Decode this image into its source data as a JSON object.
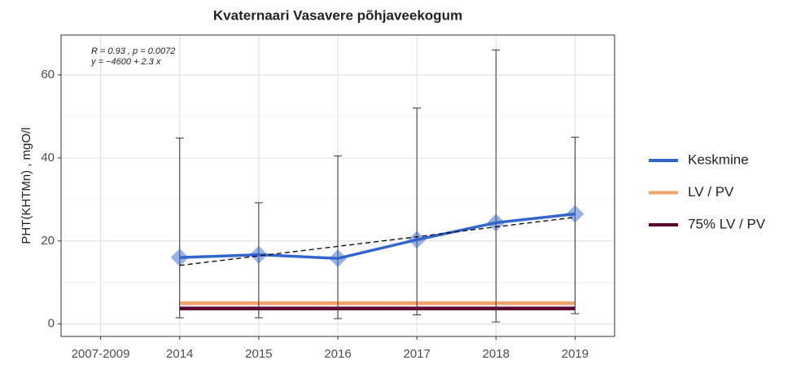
{
  "chart_data": {
    "type": "line",
    "title": "Kvaternaari Vasavere põhjaveekogum",
    "y_label": "PHT(KHTMn) , mgO/l",
    "annotations": [
      "R = 0.93 , p = 0.0072",
      "y = −4600 + 2.3 x"
    ],
    "categories": [
      "2007-2009",
      "2014",
      "2015",
      "2016",
      "2017",
      "2018",
      "2019"
    ],
    "series": [
      {
        "name": "Keskmine",
        "color": "#3366cc",
        "values": [
          null,
          16,
          16.7,
          15.8,
          20.3,
          24.4,
          26.5
        ]
      },
      {
        "name": "LV / PV",
        "color": "#f4a16c",
        "values": [
          null,
          5,
          5,
          5,
          5,
          5,
          5
        ]
      },
      {
        "name": "75% LV / PV",
        "color": "#5c0034",
        "values": [
          null,
          3.75,
          3.75,
          3.75,
          3.75,
          3.75,
          3.75
        ]
      }
    ],
    "error_bars": {
      "lower": [
        null,
        1.5,
        1.5,
        1.3,
        2.2,
        0.5,
        2.5
      ],
      "upper": [
        null,
        44.8,
        29.2,
        40.5,
        52,
        66,
        45
      ]
    },
    "trend": {
      "color": "#000000",
      "values": [
        null,
        14.1,
        16.4,
        18.7,
        21.0,
        23.4,
        25.7
      ]
    },
    "ylim": [
      -3,
      69.6
    ],
    "yticks": [
      0,
      20,
      40,
      60
    ],
    "grid": true
  }
}
